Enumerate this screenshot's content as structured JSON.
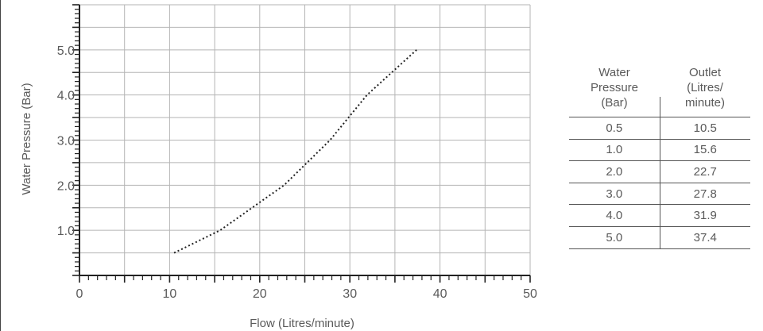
{
  "chart_data": {
    "type": "line",
    "title": "",
    "xlabel": "Flow (Litres/minute)",
    "ylabel": "Water Pressure (Bar)",
    "xlim": [
      0,
      50
    ],
    "ylim": [
      0,
      6
    ],
    "x_ticks": [
      "0",
      "10",
      "20",
      "30",
      "40",
      "50"
    ],
    "y_ticks": [
      "1.0",
      "2.0",
      "3.0",
      "4.0",
      "5.0"
    ],
    "grid": true,
    "line_style": "dotted",
    "series": [
      {
        "x": [
          10.5,
          15.6,
          22.7,
          27.8,
          31.9,
          37.4
        ],
        "y": [
          0.5,
          1.0,
          2.0,
          3.0,
          4.0,
          5.0
        ]
      }
    ]
  },
  "table": {
    "headers": [
      [
        "Water",
        "Pressure",
        "(Bar)"
      ],
      [
        "Outlet",
        "(Litres/",
        "minute)"
      ]
    ],
    "rows": [
      [
        "0.5",
        "10.5"
      ],
      [
        "1.0",
        "15.6"
      ],
      [
        "2.0",
        "22.7"
      ],
      [
        "3.0",
        "27.8"
      ],
      [
        "4.0",
        "31.9"
      ],
      [
        "5.0",
        "37.4"
      ]
    ]
  }
}
